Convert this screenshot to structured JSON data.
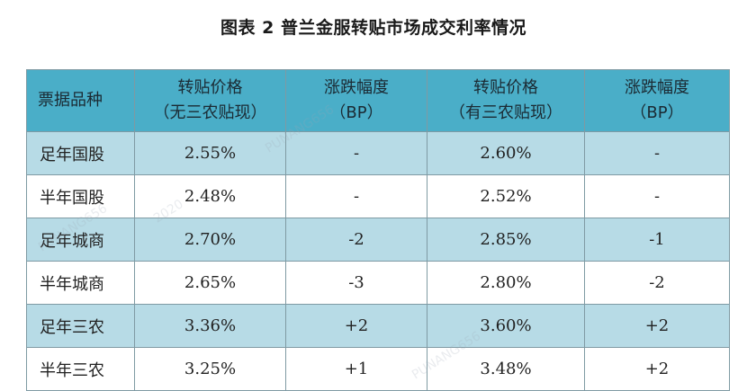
{
  "title": "图表 2  普兰金服转贴市场成交利率情况",
  "table": {
    "headers": [
      {
        "line1": "票据品种",
        "line2": ""
      },
      {
        "line1": "转贴价格",
        "line2": "（无三农贴现）"
      },
      {
        "line1": "涨跌幅度",
        "line2": "（BP）"
      },
      {
        "line1": "转贴价格",
        "line2": "（有三农贴现）"
      },
      {
        "line1": "涨跌幅度",
        "line2": "（BP）"
      }
    ],
    "rows": [
      [
        "足年国股",
        "2.55%",
        "-",
        "2.60%",
        "-"
      ],
      [
        "半年国股",
        "2.48%",
        "-",
        "2.52%",
        "-"
      ],
      [
        "足年城商",
        "2.70%",
        "-2",
        "2.85%",
        "-1"
      ],
      [
        "半年城商",
        "2.65%",
        "-3",
        "2.80%",
        "-2"
      ],
      [
        "足年三农",
        "3.36%",
        "+2",
        "3.60%",
        "+2"
      ],
      [
        "半年三农",
        "3.25%",
        "+1",
        "3.48%",
        "+2"
      ]
    ]
  },
  "watermarks": [
    "PUNANG656",
    "2020",
    "PUNANG656",
    "PUNANG656"
  ],
  "colors": {
    "header_bg": "#4aaec8",
    "row_tint": "#b7dbe6",
    "border": "#7f9aa3"
  }
}
